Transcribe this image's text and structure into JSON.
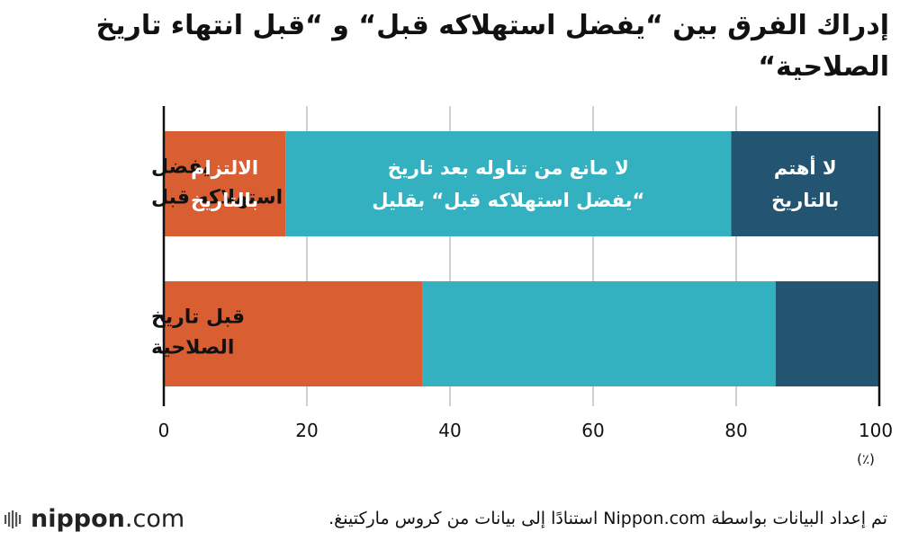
{
  "chart_data": {
    "type": "bar",
    "orientation": "horizontal",
    "stacked": true,
    "title": "إدراك الفرق بين “يفضل استهلاكه قبل“ و “قبل انتهاء تاريخ الصلاحية“",
    "categories": [
      "يفضل استهلاكه قبل",
      "قبل تاريخ الصلاحية"
    ],
    "series": [
      {
        "name": "الالتزام بالتاريخ",
        "color": "#d95f32",
        "values": [
          17,
          36.2
        ]
      },
      {
        "name": "لا مانع من تناوله بعد تاريخ “يفضل استهلاكه قبل“ بقليل",
        "color": "#33b1c0",
        "values": [
          62.3,
          49.3
        ]
      },
      {
        "name": "لا أهتم بالتاريخ",
        "color": "#235572",
        "values": [
          20.7,
          14.5
        ]
      }
    ],
    "xlim": [
      0,
      100
    ],
    "xticks": [
      "0",
      "20",
      "40",
      "60",
      "80",
      "100"
    ],
    "xunit": "(٪)",
    "grid": true
  },
  "footer": {
    "source": "تم إعداد البيانات بواسطة Nippon.com استنادًا إلى بيانات من كروس ماركتينغ.",
    "logo_part1": "nippon",
    "logo_part2": ".com"
  }
}
